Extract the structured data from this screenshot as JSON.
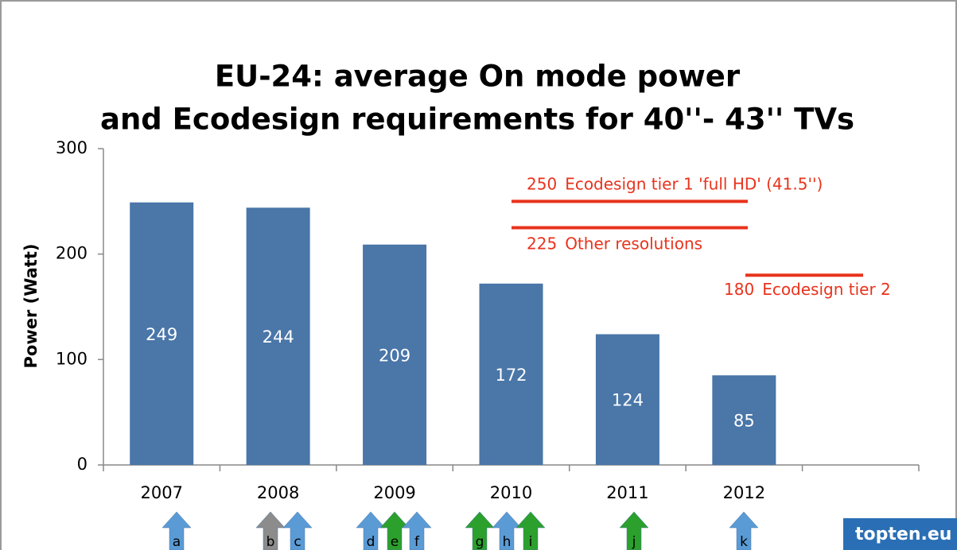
{
  "chart_data": {
    "type": "bar",
    "title": [
      "EU-24: average On mode power",
      "and Ecodesign requirements for 40''- 43'' TVs"
    ],
    "y_label": "Power (Watt)",
    "categories": [
      "2007",
      "2008",
      "2009",
      "2010",
      "2011",
      "2012",
      null
    ],
    "values": [
      249,
      244,
      209,
      172,
      124,
      85,
      null
    ],
    "color": "#4a76a8",
    "ylim": [
      0,
      300
    ],
    "yticks": [
      0,
      100,
      200,
      300
    ],
    "reference_lines": [
      {
        "value": 250,
        "label": "Ecodesign tier 1 'full HD'  (41.5'')",
        "color": "#e8331c"
      },
      {
        "value": 225,
        "label": "Other resolutions",
        "color": "#e8331c"
      },
      {
        "value": 180,
        "label": "Ecodesign tier 2",
        "color": "#e8331c"
      }
    ],
    "annotations": [
      {
        "label": "a",
        "color": "#5b9bd5"
      },
      {
        "label": "b",
        "color": "#8c8c8c"
      },
      {
        "label": "c",
        "color": "#5b9bd5"
      },
      {
        "label": "d",
        "color": "#5b9bd5"
      },
      {
        "label": "e",
        "color": "#2ca02c"
      },
      {
        "label": "f",
        "color": "#5b9bd5"
      },
      {
        "label": "g",
        "color": "#2ca02c"
      },
      {
        "label": "h",
        "color": "#5b9bd5"
      },
      {
        "label": "i",
        "color": "#2ca02c"
      },
      {
        "label": "j",
        "color": "#2ca02c"
      },
      {
        "label": "k",
        "color": "#5b9bd5"
      }
    ],
    "logo": "topten.eu"
  }
}
